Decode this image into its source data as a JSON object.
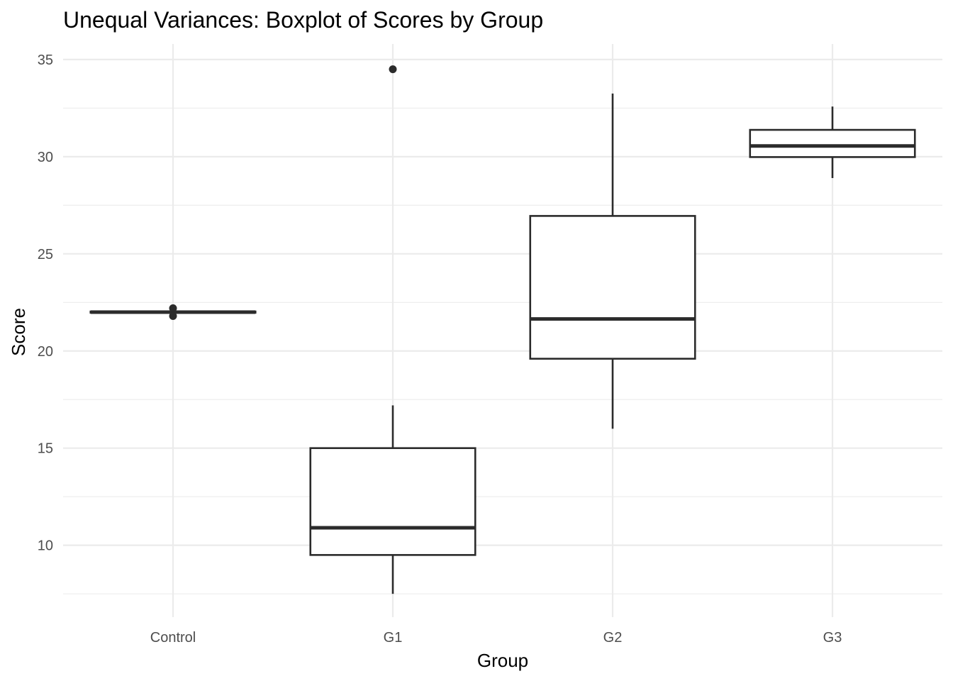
{
  "chart_data": {
    "type": "boxplot",
    "title": "Unequal Variances: Boxplot of Scores by Group",
    "xlabel": "Group",
    "ylabel": "Score",
    "ylim": [
      6.3,
      35.8
    ],
    "y_major_ticks": [
      10,
      15,
      20,
      25,
      30,
      35
    ],
    "y_minor_ticks": [
      7.5,
      12.5,
      17.5,
      22.5,
      27.5,
      32.5
    ],
    "grid": true,
    "categories": [
      "Control",
      "G1",
      "G2",
      "G3"
    ],
    "series": [
      {
        "name": "Control",
        "min": 21.95,
        "q1": 21.97,
        "median": 22.0,
        "q3": 22.03,
        "max": 22.05,
        "outliers": [
          22.2,
          21.8
        ]
      },
      {
        "name": "G1",
        "min": 7.5,
        "q1": 9.5,
        "median": 10.9,
        "q3": 15.0,
        "max": 17.2,
        "outliers": [
          34.5
        ]
      },
      {
        "name": "G2",
        "min": 16.0,
        "q1": 19.6,
        "median": 21.65,
        "q3": 26.95,
        "max": 33.25,
        "outliers": []
      },
      {
        "name": "G3",
        "min": 28.9,
        "q1": 29.98,
        "median": 30.55,
        "q3": 31.38,
        "max": 32.58,
        "outliers": []
      }
    ],
    "colors": {
      "stroke": "#2b2b2b",
      "fill": "#ffffff",
      "grid": "#ebebeb",
      "tick": "#4d4d4d"
    }
  }
}
